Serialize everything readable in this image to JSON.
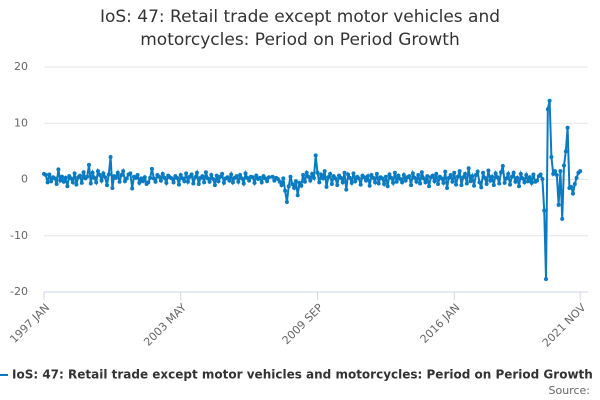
{
  "chart_data": {
    "type": "line",
    "title": "IoS: 47: Retail trade except motor vehicles and motorcycles: Period on Period Growth",
    "source": "Source:",
    "categories": [
      "1997 JAN",
      null,
      null,
      null,
      null,
      null,
      null,
      null,
      null,
      null,
      null,
      null,
      null,
      null,
      null,
      null,
      null,
      null,
      null,
      null,
      null,
      null,
      null,
      null,
      null,
      null,
      null,
      null,
      null,
      null,
      null,
      null,
      null,
      null,
      null,
      null,
      null,
      null,
      null,
      null,
      null,
      null,
      null,
      null,
      null,
      null,
      null,
      null,
      null,
      null,
      null,
      null,
      null,
      null,
      null,
      null,
      null,
      null,
      null,
      null,
      null,
      null,
      null,
      null,
      null,
      null,
      null,
      null,
      null,
      null,
      null,
      null,
      null,
      null,
      null,
      null,
      "2003 MAY",
      null,
      null,
      null,
      null,
      null,
      null,
      null,
      null,
      null,
      null,
      null,
      null,
      null,
      null,
      null,
      null,
      null,
      null,
      null,
      null,
      null,
      null,
      null,
      null,
      null,
      null,
      null,
      null,
      null,
      null,
      null,
      null,
      null,
      null,
      null,
      null,
      null,
      null,
      null,
      null,
      null,
      null,
      null,
      null,
      null,
      null,
      null,
      null,
      null,
      null,
      null,
      null,
      null,
      null,
      null,
      null,
      null,
      null,
      null,
      null,
      null,
      null,
      null,
      null,
      null,
      null,
      null,
      null,
      null,
      null,
      null,
      null,
      null,
      null,
      null,
      "2009 SEP",
      null,
      null,
      null,
      null,
      null,
      null,
      null,
      null,
      null,
      null,
      null,
      null,
      null,
      null,
      null,
      null,
      null,
      null,
      null,
      null,
      null,
      null,
      null,
      null,
      null,
      null,
      null,
      null,
      null,
      null,
      null,
      null,
      null,
      null,
      null,
      null,
      null,
      null,
      null,
      null,
      null,
      null,
      null,
      null,
      null,
      null,
      null,
      null,
      null,
      null,
      null,
      null,
      null,
      null,
      null,
      null,
      null,
      null,
      null,
      null,
      null,
      null,
      null,
      null,
      null,
      null,
      null,
      null,
      null,
      null,
      null,
      null,
      null,
      null,
      null,
      "2016 JAN",
      null,
      null,
      null,
      null,
      null,
      null,
      null,
      null,
      null,
      null,
      null,
      null,
      null,
      null,
      null,
      null,
      null,
      null,
      null,
      null,
      null,
      null,
      null,
      null,
      null,
      null,
      null,
      null,
      null,
      null,
      null,
      null,
      null,
      null,
      null,
      null,
      null,
      null,
      null,
      null,
      null,
      null,
      null,
      null,
      null,
      null,
      null,
      null,
      null,
      null,
      null,
      null,
      null,
      null,
      null,
      null,
      null,
      null,
      null,
      null,
      null,
      null,
      null,
      null,
      null,
      null,
      null,
      null,
      null,
      "2021 NOV"
    ],
    "series": [
      {
        "name": "IoS: 47: Retail trade except motor vehicles and motorcycles: Period on Period Growth",
        "color": "#0a7bc1",
        "values": [
          1.0,
          0.8,
          -0.5,
          0.9,
          -0.3,
          0.4,
          0.2,
          -0.8,
          1.8,
          -0.2,
          0.5,
          -0.4,
          0.3,
          -1.2,
          0.6,
          0.2,
          -0.5,
          1.1,
          -0.9,
          0.4,
          0.7,
          -0.6,
          1.3,
          0.2,
          0.5,
          2.6,
          -0.7,
          1.2,
          0.3,
          -0.5,
          1.5,
          0.8,
          -0.2,
          1.1,
          0.4,
          -1.0,
          0.9,
          4.0,
          -1.5,
          0.6,
          0.3,
          1.2,
          -0.4,
          0.8,
          1.5,
          -0.3,
          0.2,
          0.9,
          1.1,
          -1.6,
          0.5,
          0.3,
          0.8,
          -0.6,
          0.2,
          -0.3,
          0.4,
          -0.8,
          -0.5,
          0.3,
          1.9,
          0.2,
          -0.4,
          0.8,
          0.5,
          -0.2,
          1.0,
          0.3,
          -0.6,
          0.7,
          0.4,
          0.2,
          -0.5,
          0.6,
          0.3,
          -0.9,
          0.8,
          0.2,
          -0.3,
          1.1,
          -0.4,
          0.5,
          0.9,
          -0.7,
          0.4,
          1.2,
          -0.8,
          0.3,
          0.6,
          -0.5,
          1.3,
          0.2,
          -0.4,
          0.8,
          0.1,
          -1.0,
          0.7,
          -0.3,
          0.5,
          1.0,
          -0.6,
          0.2,
          0.4,
          -0.2,
          0.9,
          -0.5,
          0.3,
          0.6,
          -0.4,
          0.8,
          0.2,
          -0.7,
          1.1,
          0.3,
          -0.2,
          0.5,
          0.4,
          -0.6,
          0.7,
          0.1,
          0.3,
          -0.5,
          0.6,
          0.2,
          -0.3,
          0.4,
          null,
          0.5,
          -0.2,
          0.3,
          0.1,
          -0.4,
          -1.0,
          0.2,
          -2.0,
          -4.0,
          -1.2,
          0.5,
          -0.8,
          -1.5,
          -0.3,
          -2.8,
          -0.6,
          -1.1,
          0.8,
          -0.4,
          1.2,
          0.5,
          -0.2,
          1.0,
          0.3,
          4.3,
          1.2,
          -0.5,
          0.9,
          0.2,
          1.5,
          -1.3,
          0.4,
          1.0,
          -0.8,
          0.6,
          0.2,
          -1.0,
          0.7,
          0.3,
          -0.5,
          1.2,
          -1.8,
          0.9,
          0.3,
          -0.6,
          1.1,
          -0.3,
          0.5,
          0.2,
          -0.9,
          0.7,
          0.4,
          -0.2,
          0.6,
          -1.1,
          0.8,
          0.3,
          -0.5,
          1.0,
          -0.7,
          0.4,
          0.2,
          -0.8,
          0.5,
          -1.2,
          0.9,
          0.3,
          -0.6,
          1.2,
          -0.4,
          0.7,
          0.1,
          -0.5,
          0.8,
          -0.2,
          0.4,
          0.6,
          -1.0,
          1.1,
          0.3,
          -0.4,
          0.8,
          -0.7,
          1.3,
          0.2,
          -0.5,
          0.6,
          -1.2,
          0.4,
          0.7,
          -0.3,
          1.0,
          -0.8,
          0.5,
          0.2,
          -0.6,
          1.4,
          -1.5,
          0.3,
          0.8,
          -0.4,
          1.2,
          -0.9,
          0.5,
          1.5,
          -1.0,
          0.4,
          1.0,
          -0.7,
          2.0,
          -0.3,
          0.6,
          -1.1,
          0.8,
          1.4,
          -0.5,
          -1.4,
          1.2,
          0.3,
          -0.8,
          1.6,
          -0.2,
          0.5,
          -1.0,
          1.1,
          0.4,
          -0.7,
          1.3,
          2.4,
          -0.6,
          0.2,
          1.0,
          -0.9,
          0.5,
          1.2,
          -0.4,
          0.3,
          -1.2,
          1.0,
          0.2,
          -0.5,
          0.8,
          -0.3,
          0.4,
          -0.6,
          0.9,
          -0.4,
          -0.2,
          0.6,
          0.9,
          0.1,
          -5.5,
          -17.7,
          12.5,
          14.0,
          4.0,
          1.0,
          1.5,
          0.8,
          -4.5,
          1.5,
          -7.0,
          2.5,
          5.0,
          9.2,
          -1.5,
          -1.3,
          -2.5,
          -0.8,
          0.3,
          1.2,
          1.5
        ]
      }
    ],
    "ylim": [
      -20,
      20
    ],
    "yticks": [
      -20,
      -10,
      0,
      10,
      20
    ],
    "grid": true
  }
}
